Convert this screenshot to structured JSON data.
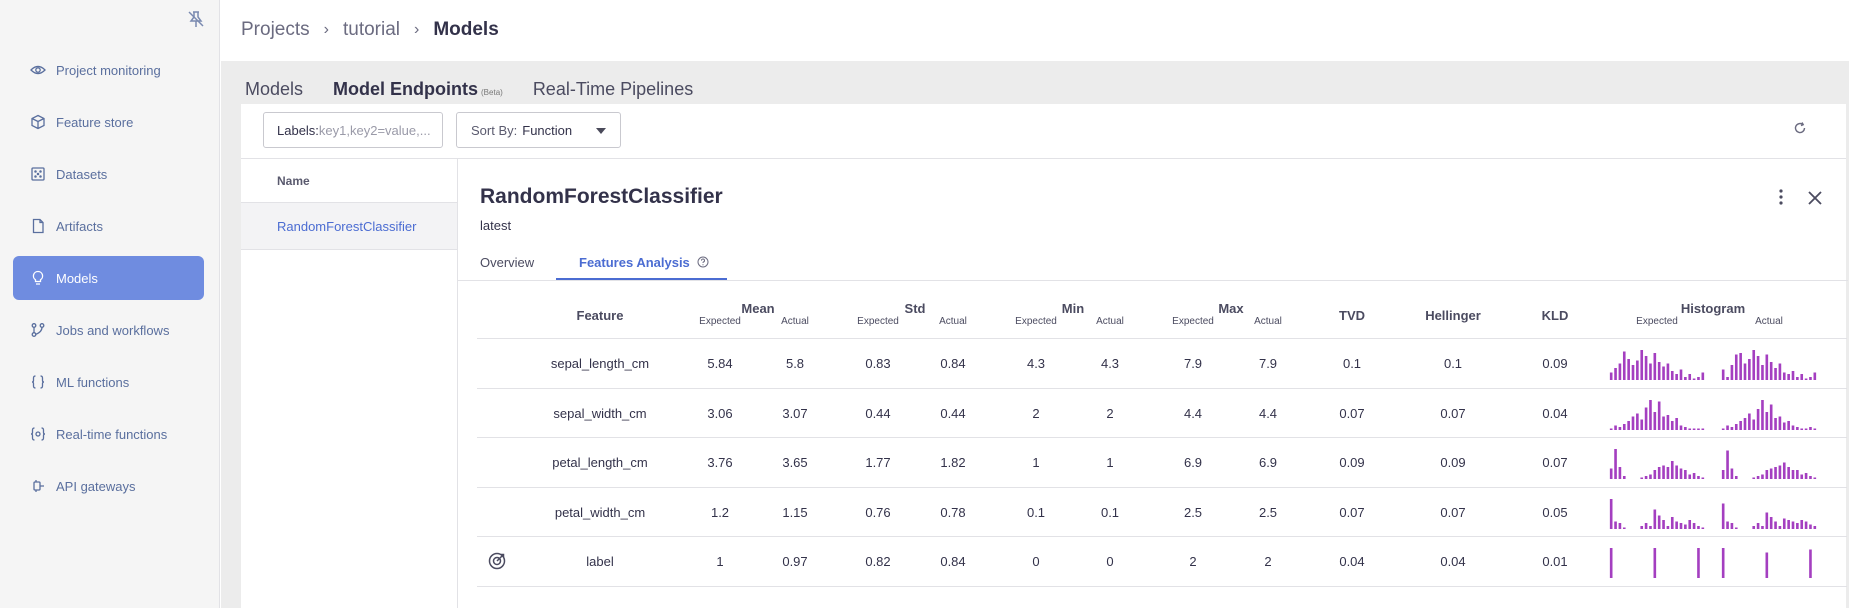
{
  "sidebar": {
    "items": [
      {
        "label": "Project monitoring",
        "icon": "eye-icon",
        "active": false
      },
      {
        "label": "Feature store",
        "icon": "cube-icon",
        "active": false
      },
      {
        "label": "Datasets",
        "icon": "grid-icon",
        "active": false
      },
      {
        "label": "Artifacts",
        "icon": "file-icon",
        "active": false
      },
      {
        "label": "Models",
        "icon": "bulb-icon",
        "active": true
      },
      {
        "label": "Jobs and workflows",
        "icon": "flow-icon",
        "active": false
      },
      {
        "label": "ML functions",
        "icon": "braces-icon",
        "active": false
      },
      {
        "label": "Real-time functions",
        "icon": "gear-braces-icon",
        "active": false
      },
      {
        "label": "API gateways",
        "icon": "gateway-icon",
        "active": false
      }
    ]
  },
  "breadcrumb": {
    "items": [
      "Projects",
      "tutorial",
      "Models"
    ]
  },
  "tabs": [
    {
      "label": "Models",
      "active": false
    },
    {
      "label": "Model Endpoints",
      "badge": "(Beta)",
      "active": true
    },
    {
      "label": "Real-Time Pipelines",
      "active": false
    }
  ],
  "filters": {
    "labels_prefix": "Labels:",
    "labels_placeholder": "key1,key2=value,...",
    "sort_label": "Sort By:",
    "sort_value": "Function"
  },
  "list": {
    "header": "Name",
    "rows": [
      "RandomForestClassifier"
    ]
  },
  "details": {
    "title": "RandomForestClassifier",
    "subtitle": "latest",
    "tabs": [
      {
        "label": "Overview",
        "active": false
      },
      {
        "label": "Features Analysis",
        "active": true
      }
    ]
  },
  "table": {
    "headers": {
      "feature": "Feature",
      "mean": "Mean",
      "std": "Std",
      "min": "Min",
      "max": "Max",
      "tvd": "TVD",
      "hellinger": "Hellinger",
      "kld": "KLD",
      "histogram": "Histogram",
      "expected": "Expected",
      "actual": "Actual"
    },
    "rows": [
      {
        "feature": "sepal_length_cm",
        "mean_e": "5.84",
        "mean_a": "5.8",
        "std_e": "0.83",
        "std_a": "0.84",
        "min_e": "4.3",
        "min_a": "4.3",
        "max_e": "7.9",
        "max_a": "7.9",
        "tvd": "0.1",
        "hellinger": "0.1",
        "kld": "0.09",
        "target": false,
        "hist_e": [
          0.25,
          0.4,
          0.55,
          0.95,
          0.7,
          0.5,
          0.65,
          1,
          0.8,
          0.55,
          0.9,
          0.6,
          0.45,
          0.55,
          0.3,
          0.2,
          0.35,
          0.1,
          0.2,
          0.05,
          0.1,
          0.25
        ],
        "hist_a": [
          0.35,
          0.1,
          0.5,
          0.85,
          0.9,
          0.55,
          0.7,
          1,
          0.8,
          0.5,
          0.85,
          0.6,
          0.4,
          0.55,
          0.25,
          0.2,
          0.3,
          0.1,
          0.2,
          0.05,
          0.1,
          0.25
        ]
      },
      {
        "feature": "sepal_width_cm",
        "mean_e": "3.06",
        "mean_a": "3.07",
        "std_e": "0.44",
        "std_a": "0.44",
        "min_e": "2",
        "min_a": "2",
        "max_e": "4.4",
        "max_a": "4.4",
        "tvd": "0.07",
        "hellinger": "0.07",
        "kld": "0.04",
        "target": false,
        "hist_e": [
          0.05,
          0.15,
          0.1,
          0.2,
          0.3,
          0.45,
          0.55,
          0.35,
          0.75,
          1,
          0.6,
          0.95,
          0.45,
          0.5,
          0.3,
          0.4,
          0.15,
          0.1,
          0.05,
          0.05,
          0.05,
          0.05
        ],
        "hist_a": [
          0.05,
          0.15,
          0.1,
          0.2,
          0.3,
          0.4,
          0.55,
          0.35,
          0.7,
          1,
          0.6,
          0.85,
          0.4,
          0.45,
          0.25,
          0.3,
          0.15,
          0.1,
          0.05,
          0.05,
          0.1,
          0.05
        ]
      },
      {
        "feature": "petal_length_cm",
        "mean_e": "3.76",
        "mean_a": "3.65",
        "std_e": "1.77",
        "std_a": "1.82",
        "min_e": "1",
        "min_a": "1",
        "max_e": "6.9",
        "max_a": "6.9",
        "tvd": "0.09",
        "hellinger": "0.09",
        "kld": "0.07",
        "target": false,
        "hist_e": [
          0.35,
          1,
          0.4,
          0.1,
          0,
          0,
          0,
          0.05,
          0.1,
          0.15,
          0.3,
          0.4,
          0.45,
          0.4,
          0.6,
          0.45,
          0.35,
          0.3,
          0.15,
          0.2,
          0.1,
          0.05
        ],
        "hist_a": [
          0.3,
          0.95,
          0.35,
          0.1,
          0,
          0,
          0,
          0.05,
          0.1,
          0.15,
          0.3,
          0.35,
          0.4,
          0.45,
          0.55,
          0.4,
          0.3,
          0.3,
          0.15,
          0.2,
          0.1,
          0.05
        ]
      },
      {
        "feature": "petal_width_cm",
        "mean_e": "1.2",
        "mean_a": "1.15",
        "std_e": "0.76",
        "std_a": "0.78",
        "min_e": "0.1",
        "min_a": "0.1",
        "max_e": "2.5",
        "max_a": "2.5",
        "tvd": "0.07",
        "hellinger": "0.07",
        "kld": "0.05",
        "target": false,
        "hist_e": [
          1,
          0.25,
          0.2,
          0.05,
          0,
          0,
          0,
          0.1,
          0.2,
          0.1,
          0.65,
          0.45,
          0.3,
          0.1,
          0.4,
          0.25,
          0.2,
          0.15,
          0.3,
          0.2,
          0.1,
          0.05
        ],
        "hist_a": [
          0.85,
          0.25,
          0.2,
          0.05,
          0,
          0,
          0,
          0.1,
          0.2,
          0.1,
          0.55,
          0.4,
          0.25,
          0.1,
          0.35,
          0.3,
          0.25,
          0.2,
          0.3,
          0.25,
          0.15,
          0.1
        ]
      },
      {
        "feature": "label",
        "mean_e": "1",
        "mean_a": "0.97",
        "std_e": "0.82",
        "std_a": "0.84",
        "min_e": "0",
        "min_a": "0",
        "max_e": "2",
        "max_a": "2",
        "tvd": "0.04",
        "hellinger": "0.04",
        "kld": "0.01",
        "target": true,
        "hist_e": [
          1,
          0,
          0,
          0,
          0,
          0,
          0,
          0,
          0,
          0,
          1,
          0,
          0,
          0,
          0,
          0,
          0,
          0,
          0,
          0,
          1,
          0
        ],
        "hist_a": [
          1,
          0,
          0,
          0,
          0,
          0,
          0,
          0,
          0,
          0,
          0.85,
          0,
          0,
          0,
          0,
          0,
          0,
          0,
          0,
          0,
          0.95,
          0
        ]
      }
    ]
  },
  "colors": {
    "accent": "#6f8ce0",
    "link": "#4b6cd2",
    "histogram": "#a43fc0"
  }
}
